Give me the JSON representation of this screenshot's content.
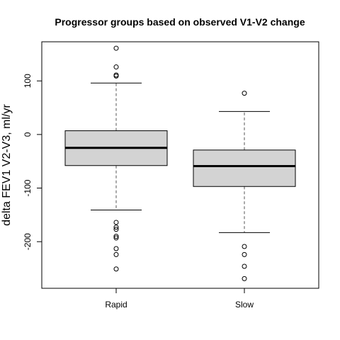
{
  "chart_data": {
    "type": "box",
    "title": "Progressor groups based on observed V1-V2 change",
    "xlabel": "",
    "ylabel": "delta FEV1 V2-V3, ml/yr",
    "categories": [
      "Rapid",
      "Slow"
    ],
    "ylim": [
      -287,
      173
    ],
    "yticks": [
      -200,
      -100,
      0,
      100
    ],
    "boxes": [
      {
        "name": "Rapid",
        "whisker_low": -141,
        "q1": -58,
        "median": -25,
        "q3": 7,
        "whisker_high": 96,
        "outliers": [
          161,
          126,
          111,
          109,
          -164,
          -173,
          -177,
          -190,
          -193,
          -213,
          -224,
          -251
        ]
      },
      {
        "name": "Slow",
        "whisker_low": -183,
        "q1": -97,
        "median": -59,
        "q3": -29,
        "whisker_high": 43,
        "outliers": [
          77,
          -209,
          -224,
          -246,
          -269
        ]
      }
    ]
  }
}
